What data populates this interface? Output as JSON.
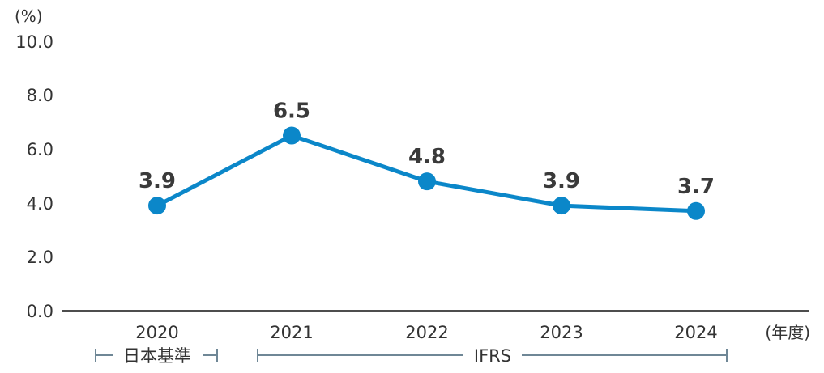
{
  "chart_data": {
    "type": "line",
    "categories": [
      "2020",
      "2021",
      "2022",
      "2023",
      "2024"
    ],
    "values": [
      3.9,
      6.5,
      4.8,
      3.9,
      3.7
    ],
    "data_labels": [
      "3.9",
      "6.5",
      "4.8",
      "3.9",
      "3.7"
    ],
    "yticks": [
      "0.0",
      "2.0",
      "4.0",
      "6.0",
      "8.0",
      "10.0"
    ],
    "ylim": [
      0,
      10
    ],
    "y_unit": "(%)",
    "x_unit": "(年度)",
    "grid": false,
    "line_color": "#0b87c9",
    "axis_color": "#4d4d4d",
    "bracket_color": "#6f8796",
    "periods": [
      {
        "label": "日本基準",
        "start": "2020",
        "end": "2020"
      },
      {
        "label": "IFRS",
        "start": "2021",
        "end": "2024"
      }
    ]
  }
}
